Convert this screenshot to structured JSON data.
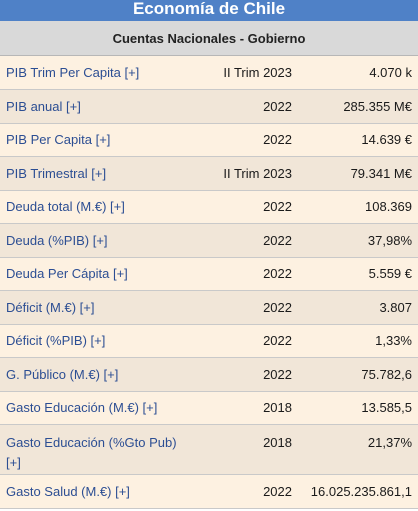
{
  "widget": {
    "title": "Economía de Chile",
    "section": "Cuentas Nacionales - Gobierno"
  },
  "rows": [
    {
      "label": "PIB Trim Per Capita [+]",
      "period": "II Trim 2023",
      "value": "4.070 k"
    },
    {
      "label": "PIB anual [+]",
      "period": "2022",
      "value": "285.355 M€"
    },
    {
      "label": "PIB Per Capita [+]",
      "period": "2022",
      "value": "14.639 €"
    },
    {
      "label": "PIB Trimestral [+]",
      "period": "II Trim 2023",
      "value": "79.341 M€"
    },
    {
      "label": "Deuda total (M.€) [+]",
      "period": "2022",
      "value": "108.369"
    },
    {
      "label": "Deuda (%PIB) [+]",
      "period": "2022",
      "value": "37,98%"
    },
    {
      "label": "Deuda Per Cápita [+]",
      "period": "2022",
      "value": "5.559 €"
    },
    {
      "label": "Déficit (M.€) [+]",
      "period": "2022",
      "value": "3.807"
    },
    {
      "label": "Déficit (%PIB) [+]",
      "period": "2022",
      "value": "1,33%"
    },
    {
      "label": "G. Público (M.€) [+]",
      "period": "2022",
      "value": "75.782,6"
    },
    {
      "label": "Gasto Educación (M.€) [+]",
      "period": "2018",
      "value": "13.585,5"
    },
    {
      "label": "Gasto Educación (%Gto Pub) [+]",
      "period": "2018",
      "value": "21,37%"
    },
    {
      "label": "Gasto Salud (M.€) [+]",
      "period": "2022",
      "value": "16.025.235.861,1"
    }
  ],
  "colors": {
    "title_bg": "#4f81c7",
    "header_bg": "#d9d9d9",
    "row_odd": "#fdf1e1",
    "row_even": "#f1e6d8",
    "link": "#2c4e93"
  }
}
